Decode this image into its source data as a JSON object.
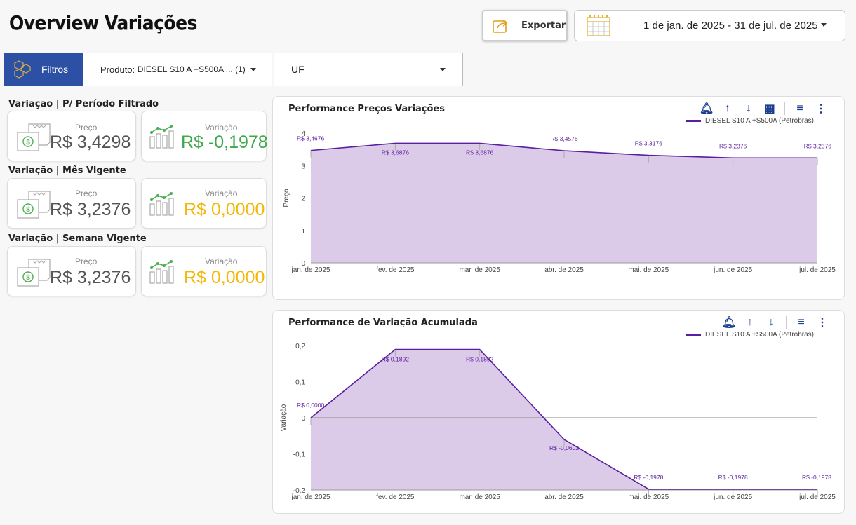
{
  "header": {
    "title": "Overview Variações",
    "export_label": "Exportar",
    "date_range": "1 de jan. de 2025 - 31 de jul. de 2025"
  },
  "filters": {
    "button_label": "Filtros",
    "product_label": "Produto:",
    "product_value": "DIESEL S10 A +S500A ... (1)",
    "uf_label": "UF"
  },
  "sections": [
    {
      "label": "Variação | P/ Período Filtrado",
      "price_label": "Preço",
      "price_value": "R$ 3,4298",
      "var_label": "Variação",
      "var_value": "R$ -0,1978",
      "var_color": "#3ea84a"
    },
    {
      "label": "Variação | Mês Vigente",
      "price_label": "Preço",
      "price_value": "R$ 3,2376",
      "var_label": "Variação",
      "var_value": "R$ 0,0000",
      "var_color": "#f2b90c"
    },
    {
      "label": "Variação | Semana Vigente",
      "price_label": "Preço",
      "price_value": "R$ 3,2376",
      "var_label": "Variação",
      "var_value": "R$ 0,0000",
      "var_color": "#f2b90c"
    }
  ],
  "icons": {
    "filter_button": "network-icon",
    "export": "export-icon",
    "calendar": "calendar-icon",
    "price": "receipt-icon",
    "variation": "bar-chart-icon",
    "toolbar": [
      "alert-bell-icon",
      "sort-ascending-icon",
      "sort-descending-icon",
      "chart-settings-icon",
      "filter-lines-icon",
      "more-vert-icon"
    ]
  },
  "colors": {
    "brand": "#2c50a4",
    "series_line": "#5a1ea0",
    "series_fill": "#dccbe8"
  },
  "chart_data": [
    {
      "type": "area",
      "title": "Performance Preços Variações",
      "xlabel": "",
      "ylabel": "Preço",
      "x": [
        "jan. de 2025",
        "fev. de 2025",
        "mar. de 2025",
        "abr. de 2025",
        "mai. de 2025",
        "jun. de 2025",
        "jul. de 2025"
      ],
      "series": [
        {
          "name": "DIESEL S10 A +S500A (Petrobras)",
          "values": [
            3.4676,
            3.6876,
            3.6876,
            3.4576,
            3.3176,
            3.2376,
            3.2376
          ],
          "labels": [
            "R$ 3,4676",
            "R$ 3,6876",
            "R$ 3,6876",
            "R$ 3,4576",
            "R$ 3,3176",
            "R$ 3,2376",
            "R$ 3,2376"
          ]
        }
      ],
      "ylim": [
        0,
        4
      ],
      "yticks": [
        "0",
        "1",
        "2",
        "3",
        "4"
      ],
      "legend": "top-right"
    },
    {
      "type": "area",
      "title": "Performance de Variação Acumulada",
      "xlabel": "",
      "ylabel": "Variação",
      "x": [
        "jan. de 2025",
        "fev. de 2025",
        "mar. de 2025",
        "abr. de 2025",
        "mai. de 2025",
        "jun. de 2025",
        "jul. de 2025"
      ],
      "series": [
        {
          "name": "DIESEL S10 A +S500A (Petrobras)",
          "values": [
            0.0,
            0.1892,
            0.1892,
            -0.0602,
            -0.1978,
            -0.1978,
            -0.1978
          ],
          "labels": [
            "R$ 0,0000",
            "R$ 0,1892",
            "R$ 0,1892",
            "R$ -0,0602",
            "R$ -0,1978",
            "R$ -0,1978",
            "R$ -0,1978"
          ]
        }
      ],
      "ylim": [
        -0.2,
        0.2
      ],
      "yticks": [
        "-0,2",
        "-0,1",
        "0",
        "0,1",
        "0,2"
      ],
      "legend": "top-right"
    }
  ]
}
